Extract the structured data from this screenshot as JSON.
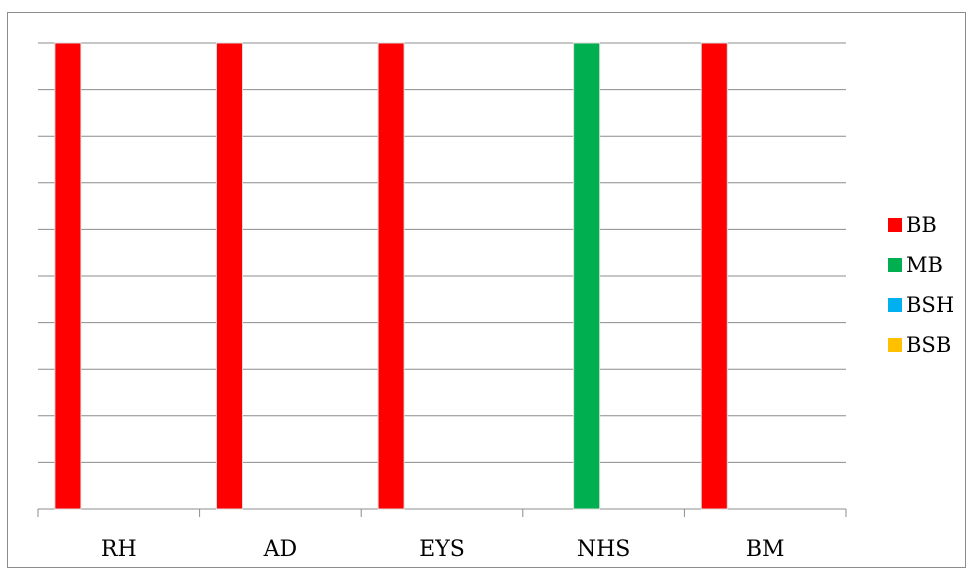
{
  "chart_data": {
    "type": "bar",
    "categories": [
      "RH",
      "AD",
      "EYS",
      "NHS",
      "BM"
    ],
    "series": [
      {
        "name": "BB",
        "color": "#ff0000",
        "values": [
          1,
          1,
          1,
          0,
          1
        ]
      },
      {
        "name": "MB",
        "color": "#00b050",
        "values": [
          0,
          0,
          0,
          1,
          0
        ]
      },
      {
        "name": "BSH",
        "color": "#00b0f0",
        "values": [
          0,
          0,
          0,
          0,
          0
        ]
      },
      {
        "name": "BSB",
        "color": "#ffc000",
        "values": [
          0,
          0,
          0,
          0,
          0
        ]
      }
    ],
    "ylim": [
      0,
      1
    ],
    "grid": true,
    "legend": "right",
    "title": "",
    "xlabel": "",
    "ylabel": ""
  }
}
